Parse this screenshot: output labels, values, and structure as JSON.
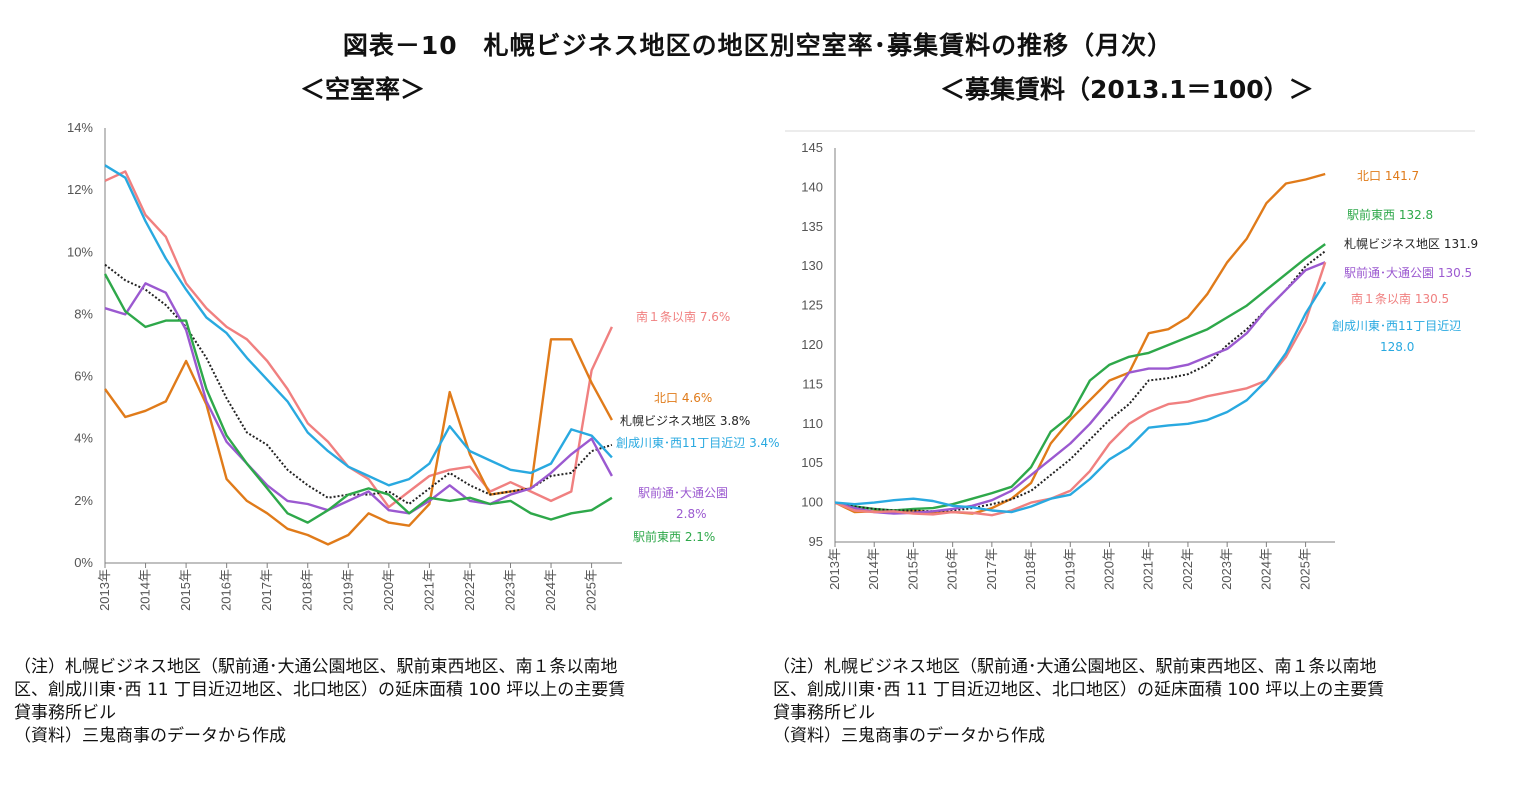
{
  "title": "図表－10　札幌ビジネス地区の地区別空室率･募集賃料の推移（月次）",
  "subtitle_left": "＜空室率＞",
  "subtitle_right": "＜募集賃料（2013.1＝100）＞",
  "notes_left": [
    "（注）札幌ビジネス地区（駅前通･大通公園地区、駅前東西地区、南１条以南地",
    "区、創成川東･西 11 丁目近辺地区、北口地区）の延床面積 100 坪以上の主要賃",
    "貸事務所ビル",
    "（資料）三鬼商事のデータから作成"
  ],
  "notes_right": [
    "（注）札幌ビジネス地区（駅前通･大通公園地区、駅前東西地区、南１条以南地",
    "区、創成川東･西 11 丁目近辺地区、北口地区）の延床面積 100 坪以上の主要賃",
    "貸事務所ビル",
    "（資料）三鬼商事のデータから作成"
  ],
  "chart_data": [
    {
      "type": "line",
      "id": "vacancy",
      "title": "＜空室率＞",
      "ylim": [
        0,
        14
      ],
      "yticks": [
        0,
        2,
        4,
        6,
        8,
        10,
        12,
        14
      ],
      "ytick_labels": [
        "0%",
        "2%",
        "4%",
        "6%",
        "8%",
        "10%",
        "12%",
        "14%"
      ],
      "xlim": [
        2013.0,
        2025.75
      ],
      "xtick_labels": [
        "2013年",
        "2014年",
        "2015年",
        "2016年",
        "2017年",
        "2018年",
        "2019年",
        "2020年",
        "2021年",
        "2022年",
        "2023年",
        "2024年",
        "2025年"
      ],
      "grid": false,
      "series": [
        {
          "name": "南1条以南",
          "color": "#f08080",
          "label": "南１条以南 7.6%",
          "x": [
            2013.0,
            2013.5,
            2014.0,
            2014.5,
            2015.0,
            2015.5,
            2016.0,
            2016.5,
            2017.0,
            2017.5,
            2018.0,
            2018.5,
            2019.0,
            2019.5,
            2020.0,
            2020.5,
            2021.0,
            2021.5,
            2022.0,
            2022.5,
            2023.0,
            2023.5,
            2024.0,
            2024.5,
            2025.0,
            2025.5
          ],
          "values": [
            12.3,
            12.6,
            11.2,
            10.5,
            9.0,
            8.2,
            7.6,
            7.2,
            6.5,
            5.6,
            4.5,
            3.9,
            3.1,
            2.7,
            1.8,
            2.3,
            2.8,
            3.0,
            3.1,
            2.3,
            2.6,
            2.3,
            2.0,
            2.3,
            6.2,
            7.6
          ]
        },
        {
          "name": "北口",
          "color": "#e07b1a",
          "label": "北口 4.6%",
          "x": [
            2013.0,
            2013.5,
            2014.0,
            2014.5,
            2015.0,
            2015.5,
            2016.0,
            2016.5,
            2017.0,
            2017.5,
            2018.0,
            2018.5,
            2019.0,
            2019.5,
            2020.0,
            2020.5,
            2021.0,
            2021.5,
            2022.0,
            2022.5,
            2023.0,
            2023.5,
            2024.0,
            2024.5,
            2025.0,
            2025.5
          ],
          "values": [
            5.6,
            4.7,
            4.9,
            5.2,
            6.5,
            5.1,
            2.7,
            2.0,
            1.6,
            1.1,
            0.9,
            0.6,
            0.9,
            1.6,
            1.3,
            1.2,
            1.9,
            5.5,
            3.5,
            2.2,
            2.3,
            2.4,
            7.2,
            7.2,
            5.8,
            4.6
          ]
        },
        {
          "name": "札幌ビジネス地区",
          "color": "#222222",
          "label": "札幌ビジネス地区 3.8%",
          "dashed": true,
          "x": [
            2013.0,
            2013.5,
            2014.0,
            2014.5,
            2015.0,
            2015.5,
            2016.0,
            2016.5,
            2017.0,
            2017.5,
            2018.0,
            2018.5,
            2019.0,
            2019.5,
            2020.0,
            2020.5,
            2021.0,
            2021.5,
            2022.0,
            2022.5,
            2023.0,
            2023.5,
            2024.0,
            2024.5,
            2025.0,
            2025.5
          ],
          "values": [
            9.6,
            9.1,
            8.8,
            8.3,
            7.6,
            6.6,
            5.3,
            4.2,
            3.8,
            3.0,
            2.5,
            2.1,
            2.2,
            2.2,
            2.3,
            1.9,
            2.4,
            2.9,
            2.5,
            2.2,
            2.3,
            2.4,
            2.8,
            2.9,
            3.6,
            3.8
          ]
        },
        {
          "name": "創成川東・西11丁目近辺",
          "color": "#29a9e0",
          "label": "創成川東･西11丁目近辺 3.4%",
          "x": [
            2013.0,
            2013.5,
            2014.0,
            2014.5,
            2015.0,
            2015.5,
            2016.0,
            2016.5,
            2017.0,
            2017.5,
            2018.0,
            2018.5,
            2019.0,
            2019.5,
            2020.0,
            2020.5,
            2021.0,
            2021.5,
            2022.0,
            2022.5,
            2023.0,
            2023.5,
            2024.0,
            2024.5,
            2025.0,
            2025.5
          ],
          "values": [
            12.8,
            12.4,
            11.0,
            9.8,
            8.8,
            7.9,
            7.4,
            6.6,
            5.9,
            5.2,
            4.2,
            3.6,
            3.1,
            2.8,
            2.5,
            2.7,
            3.2,
            4.4,
            3.6,
            3.3,
            3.0,
            2.9,
            3.2,
            4.3,
            4.1,
            3.4
          ]
        },
        {
          "name": "駅前通・大通公園",
          "color": "#9b59d0",
          "label_lines": [
            "駅前通･大通公園",
            "2.8%"
          ],
          "x": [
            2013.0,
            2013.5,
            2014.0,
            2014.5,
            2015.0,
            2015.5,
            2016.0,
            2016.5,
            2017.0,
            2017.5,
            2018.0,
            2018.5,
            2019.0,
            2019.5,
            2020.0,
            2020.5,
            2021.0,
            2021.5,
            2022.0,
            2022.5,
            2023.0,
            2023.5,
            2024.0,
            2024.5,
            2025.0,
            2025.5
          ],
          "values": [
            8.2,
            8.0,
            9.0,
            8.7,
            7.5,
            5.2,
            3.9,
            3.2,
            2.5,
            2.0,
            1.9,
            1.7,
            2.0,
            2.3,
            1.7,
            1.6,
            2.0,
            2.5,
            2.0,
            1.9,
            2.2,
            2.4,
            2.9,
            3.5,
            4.0,
            2.8
          ]
        },
        {
          "name": "駅前東西",
          "color": "#2ea84a",
          "label": "駅前東西 2.1%",
          "x": [
            2013.0,
            2013.5,
            2014.0,
            2014.5,
            2015.0,
            2015.5,
            2016.0,
            2016.5,
            2017.0,
            2017.5,
            2018.0,
            2018.5,
            2019.0,
            2019.5,
            2020.0,
            2020.5,
            2021.0,
            2021.5,
            2022.0,
            2022.5,
            2023.0,
            2023.5,
            2024.0,
            2024.5,
            2025.0,
            2025.5
          ],
          "values": [
            9.3,
            8.1,
            7.6,
            7.8,
            7.8,
            5.6,
            4.1,
            3.2,
            2.4,
            1.6,
            1.3,
            1.7,
            2.2,
            2.4,
            2.2,
            1.6,
            2.1,
            2.0,
            2.1,
            1.9,
            2.0,
            1.6,
            1.4,
            1.6,
            1.7,
            2.1
          ]
        }
      ]
    },
    {
      "type": "line",
      "id": "rent",
      "title": "＜募集賃料（2013.1＝100）＞",
      "ylim": [
        95,
        145
      ],
      "yticks": [
        95,
        100,
        105,
        110,
        115,
        120,
        125,
        130,
        135,
        140,
        145
      ],
      "ytick_labels": [
        "95",
        "100",
        "105",
        "110",
        "115",
        "120",
        "125",
        "130",
        "135",
        "140",
        "145"
      ],
      "xlim": [
        2013.0,
        2025.75
      ],
      "xtick_labels": [
        "2013年",
        "2014年",
        "2015年",
        "2016年",
        "2017年",
        "2018年",
        "2019年",
        "2020年",
        "2021年",
        "2022年",
        "2023年",
        "2024年",
        "2025年"
      ],
      "grid": false,
      "series": [
        {
          "name": "北口",
          "color": "#e07b1a",
          "label": "北口 141.7",
          "x": [
            2013.0,
            2013.5,
            2014.0,
            2014.5,
            2015.0,
            2015.5,
            2016.0,
            2016.5,
            2017.0,
            2017.5,
            2018.0,
            2018.5,
            2019.0,
            2019.5,
            2020.0,
            2020.5,
            2021.0,
            2021.5,
            2022.0,
            2022.5,
            2023.0,
            2023.5,
            2024.0,
            2024.5,
            2025.0,
            2025.5
          ],
          "values": [
            100,
            98.8,
            98.9,
            99.0,
            99.0,
            98.7,
            98.8,
            98.6,
            99.3,
            100.5,
            102.5,
            107.5,
            110.5,
            113.0,
            115.5,
            116.5,
            121.5,
            122.0,
            123.5,
            126.5,
            130.5,
            133.5,
            138.0,
            140.5,
            141.0,
            141.7
          ]
        },
        {
          "name": "駅前東西",
          "color": "#2ea84a",
          "label": "駅前東西 132.8",
          "x": [
            2013.0,
            2013.5,
            2014.0,
            2014.5,
            2015.0,
            2015.5,
            2016.0,
            2016.5,
            2017.0,
            2017.5,
            2018.0,
            2018.5,
            2019.0,
            2019.5,
            2020.0,
            2020.5,
            2021.0,
            2021.5,
            2022.0,
            2022.5,
            2023.0,
            2023.5,
            2024.0,
            2024.5,
            2025.0,
            2025.5
          ],
          "values": [
            100,
            99.5,
            99.2,
            99.0,
            99.2,
            99.3,
            99.8,
            100.5,
            101.2,
            102.0,
            104.5,
            109.0,
            111.0,
            115.5,
            117.5,
            118.5,
            119.0,
            120.0,
            121.0,
            122.0,
            123.5,
            125.0,
            127.0,
            129.0,
            131.0,
            132.8
          ]
        },
        {
          "name": "札幌ビジネス地区",
          "color": "#222222",
          "label": "札幌ビジネス地区 131.9",
          "dashed": true,
          "x": [
            2013.0,
            2013.5,
            2014.0,
            2014.5,
            2015.0,
            2015.5,
            2016.0,
            2016.5,
            2017.0,
            2017.5,
            2018.0,
            2018.5,
            2019.0,
            2019.5,
            2020.0,
            2020.5,
            2021.0,
            2021.5,
            2022.0,
            2022.5,
            2023.0,
            2023.5,
            2024.0,
            2024.5,
            2025.0,
            2025.5
          ],
          "values": [
            100,
            99.5,
            99.2,
            99.0,
            99.0,
            98.9,
            99.0,
            99.3,
            99.8,
            100.4,
            101.5,
            103.5,
            105.5,
            108.0,
            110.5,
            112.5,
            115.5,
            115.8,
            116.3,
            117.5,
            120.0,
            122.0,
            124.5,
            127.0,
            130.0,
            131.9
          ]
        },
        {
          "name": "駅前通・大通公園",
          "color": "#9b59d0",
          "label": "駅前通･大通公園 130.5",
          "x": [
            2013.0,
            2013.5,
            2014.0,
            2014.5,
            2015.0,
            2015.5,
            2016.0,
            2016.5,
            2017.0,
            2017.5,
            2018.0,
            2018.5,
            2019.0,
            2019.5,
            2020.0,
            2020.5,
            2021.0,
            2021.5,
            2022.0,
            2022.5,
            2023.0,
            2023.5,
            2024.0,
            2024.5,
            2025.0,
            2025.5
          ],
          "values": [
            100,
            99.3,
            98.8,
            98.6,
            98.7,
            98.9,
            99.2,
            99.6,
            100.3,
            101.5,
            103.5,
            105.5,
            107.5,
            110.0,
            113.0,
            116.5,
            117.0,
            117.0,
            117.5,
            118.5,
            119.5,
            121.5,
            124.5,
            127.0,
            129.5,
            130.5
          ]
        },
        {
          "name": "南1条以南",
          "color": "#f08080",
          "label": "南１条以南 130.5",
          "x": [
            2013.0,
            2013.5,
            2014.0,
            2014.5,
            2015.0,
            2015.5,
            2016.0,
            2016.5,
            2017.0,
            2017.5,
            2018.0,
            2018.5,
            2019.0,
            2019.5,
            2020.0,
            2020.5,
            2021.0,
            2021.5,
            2022.0,
            2022.5,
            2023.0,
            2023.5,
            2024.0,
            2024.5,
            2025.0,
            2025.5
          ],
          "values": [
            100,
            99.0,
            98.8,
            98.9,
            98.6,
            98.5,
            98.8,
            98.7,
            98.4,
            99.0,
            100.0,
            100.5,
            101.5,
            104.0,
            107.5,
            110.0,
            111.5,
            112.5,
            112.8,
            113.5,
            114.0,
            114.5,
            115.5,
            118.5,
            123.0,
            130.5
          ]
        },
        {
          "name": "創成川東・西11丁目近辺",
          "color": "#29a9e0",
          "label_lines": [
            "創成川東･西11丁目近辺",
            "128.0"
          ],
          "x": [
            2013.0,
            2013.5,
            2014.0,
            2014.5,
            2015.0,
            2015.5,
            2016.0,
            2016.5,
            2017.0,
            2017.5,
            2018.0,
            2018.5,
            2019.0,
            2019.5,
            2020.0,
            2020.5,
            2021.0,
            2021.5,
            2022.0,
            2022.5,
            2023.0,
            2023.5,
            2024.0,
            2024.5,
            2025.0,
            2025.5
          ],
          "values": [
            100,
            99.8,
            100.0,
            100.3,
            100.5,
            100.2,
            99.6,
            99.4,
            99.0,
            98.8,
            99.5,
            100.5,
            101.0,
            103.0,
            105.5,
            107.0,
            109.5,
            109.8,
            110.0,
            110.5,
            111.5,
            113.0,
            115.5,
            119.0,
            124.0,
            128.0
          ]
        }
      ]
    }
  ]
}
